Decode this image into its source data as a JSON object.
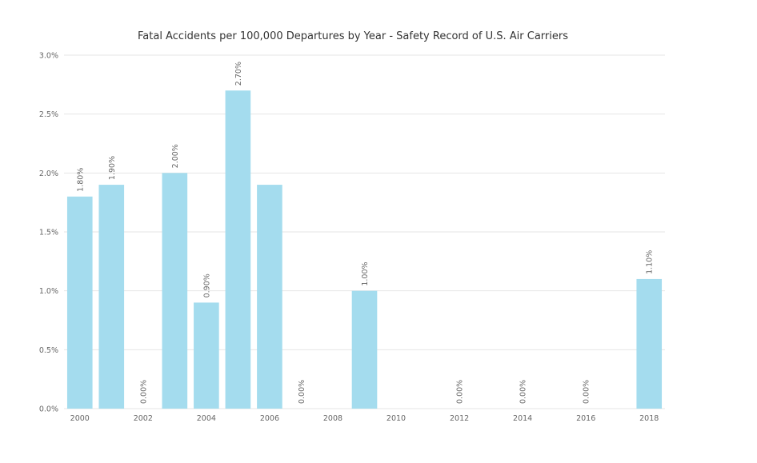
{
  "chart_data": {
    "type": "bar",
    "title": "Fatal Accidents per 100,000 Departures by Year - Safety Record of U.S. Air Carriers",
    "xlabel": "",
    "ylabel": "",
    "categories": [
      2000,
      2001,
      2002,
      2003,
      2004,
      2005,
      2006,
      2007,
      2008,
      2009,
      2010,
      2011,
      2012,
      2013,
      2014,
      2015,
      2016,
      2017,
      2018
    ],
    "values": [
      1.8,
      1.9,
      0.0,
      2.0,
      0.9,
      2.7,
      1.9,
      0.0,
      null,
      1.0,
      null,
      null,
      0.0,
      null,
      0.0,
      null,
      0.0,
      null,
      1.1
    ],
    "data_labels": [
      "1.80%",
      "1.90%",
      "0.00%",
      "2.00%",
      "0.90%",
      "2.70%",
      "",
      "0.00%",
      "",
      "1.00%",
      "",
      "",
      "0.00%",
      "",
      "0.00%",
      "",
      "0.00%",
      "",
      "1.10%"
    ],
    "x_tick_labels": [
      "2000",
      "2002",
      "2004",
      "2006",
      "2008",
      "2010",
      "2012",
      "2014",
      "2016",
      "2018"
    ],
    "y_tick_labels": [
      "0.0%",
      "0.5%",
      "1.0%",
      "1.5%",
      "2.0%",
      "2.5%",
      "3.0%"
    ],
    "ylim": [
      0,
      3
    ],
    "grid": true,
    "bar_color": "#a4dcee",
    "grid_color": "#e6e6e6"
  }
}
